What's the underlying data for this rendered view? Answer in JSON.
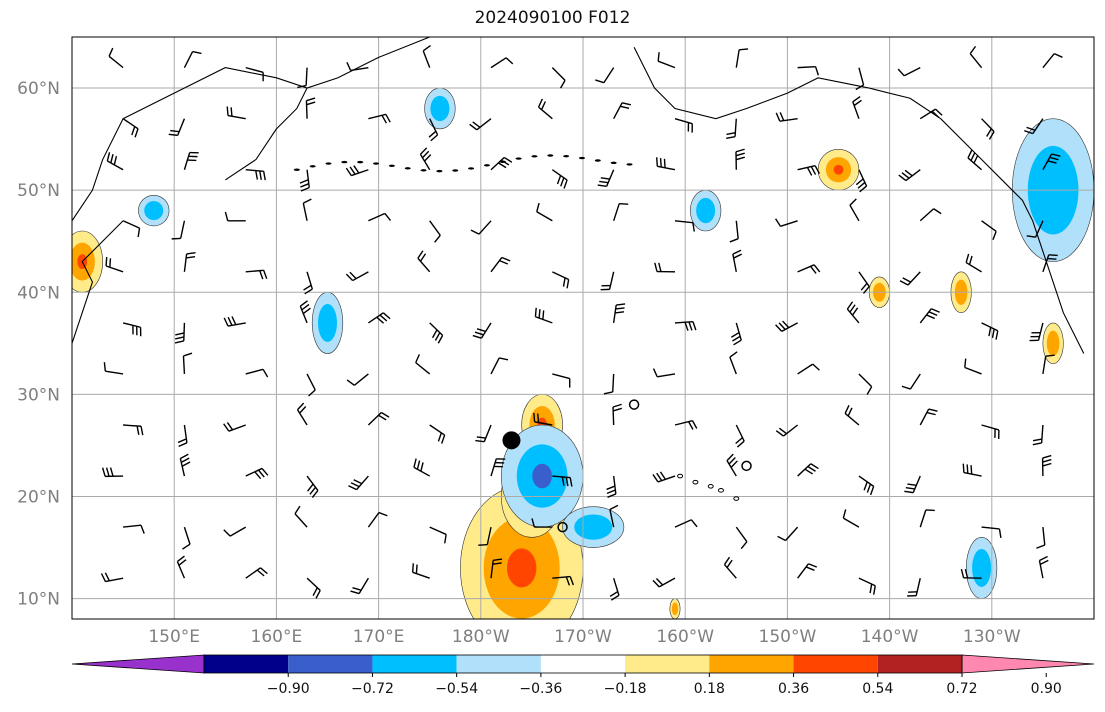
{
  "title": "2024090100 F012",
  "map": {
    "lat_labels": [
      "10°N",
      "20°N",
      "30°N",
      "40°N",
      "50°N",
      "60°N"
    ],
    "lat_values": [
      10,
      20,
      30,
      40,
      50,
      60
    ],
    "lon_labels": [
      "150°E",
      "160°E",
      "170°E",
      "180°W",
      "170°W",
      "160°W",
      "150°W",
      "140°W",
      "130°W"
    ],
    "lon_values": [
      150,
      160,
      170,
      180,
      190,
      200,
      210,
      220,
      230
    ],
    "extent": {
      "lon_min": 140,
      "lon_max": 240,
      "lat_min": 8,
      "lat_max": 65
    },
    "center_marker": {
      "lon": 183,
      "lat": 25.5
    },
    "open_circles": [
      {
        "lon": 195,
        "lat": 29
      },
      {
        "lon": 206,
        "lat": 23
      },
      {
        "lon": 188,
        "lat": 17
      }
    ],
    "colors": {
      "coast": "#000000",
      "grid": "#aaaaaa"
    }
  },
  "colorbar": {
    "tick_labels": [
      "−0.90",
      "−0.72",
      "−0.54",
      "−0.36",
      "−0.18",
      "0.18",
      "0.36",
      "0.54",
      "0.72",
      "0.90"
    ],
    "colors": [
      "#9932cc",
      "#00008b",
      "#3a5fcd",
      "#00bfff",
      "#b0e0fa",
      "#ffffff",
      "#ffeb8a",
      "#ffa500",
      "#ff4500",
      "#b22222",
      "#ff88b0"
    ]
  },
  "contours": {
    "positive": [
      {
        "lon": 184,
        "lat": 13,
        "rx": 6,
        "ry": 8,
        "level": 2
      },
      {
        "lon": 185,
        "lat": 20,
        "rx": 3,
        "ry": 4,
        "level": 2
      },
      {
        "lon": 186,
        "lat": 27,
        "rx": 2,
        "ry": 3,
        "level": 2
      },
      {
        "lon": 141,
        "lat": 43,
        "rx": 2,
        "ry": 3,
        "level": 2
      },
      {
        "lon": 215,
        "lat": 52,
        "rx": 2,
        "ry": 2,
        "level": 2
      },
      {
        "lon": 219,
        "lat": 40,
        "rx": 1,
        "ry": 1.5,
        "level": 1
      },
      {
        "lon": 227,
        "lat": 40,
        "rx": 1,
        "ry": 2,
        "level": 1
      },
      {
        "lon": 236,
        "lat": 35,
        "rx": 1,
        "ry": 2,
        "level": 1
      },
      {
        "lon": 199,
        "lat": 9,
        "rx": 0.5,
        "ry": 1,
        "level": 1
      }
    ],
    "negative": [
      {
        "lon": 186,
        "lat": 22,
        "rx": 4,
        "ry": 5,
        "level": 2
      },
      {
        "lon": 191,
        "lat": 17,
        "rx": 3,
        "ry": 2,
        "level": 1
      },
      {
        "lon": 148,
        "lat": 48,
        "rx": 1.5,
        "ry": 1.5,
        "level": 1
      },
      {
        "lon": 202,
        "lat": 48,
        "rx": 1.5,
        "ry": 2,
        "level": 1
      },
      {
        "lon": 236,
        "lat": 50,
        "rx": 4,
        "ry": 7,
        "level": 1
      },
      {
        "lon": 229,
        "lat": 13,
        "rx": 1.5,
        "ry": 3,
        "level": 1
      },
      {
        "lon": 165,
        "lat": 37,
        "rx": 1.5,
        "ry": 3,
        "level": 1
      },
      {
        "lon": 176,
        "lat": 58,
        "rx": 1.5,
        "ry": 2,
        "level": 1
      }
    ]
  }
}
